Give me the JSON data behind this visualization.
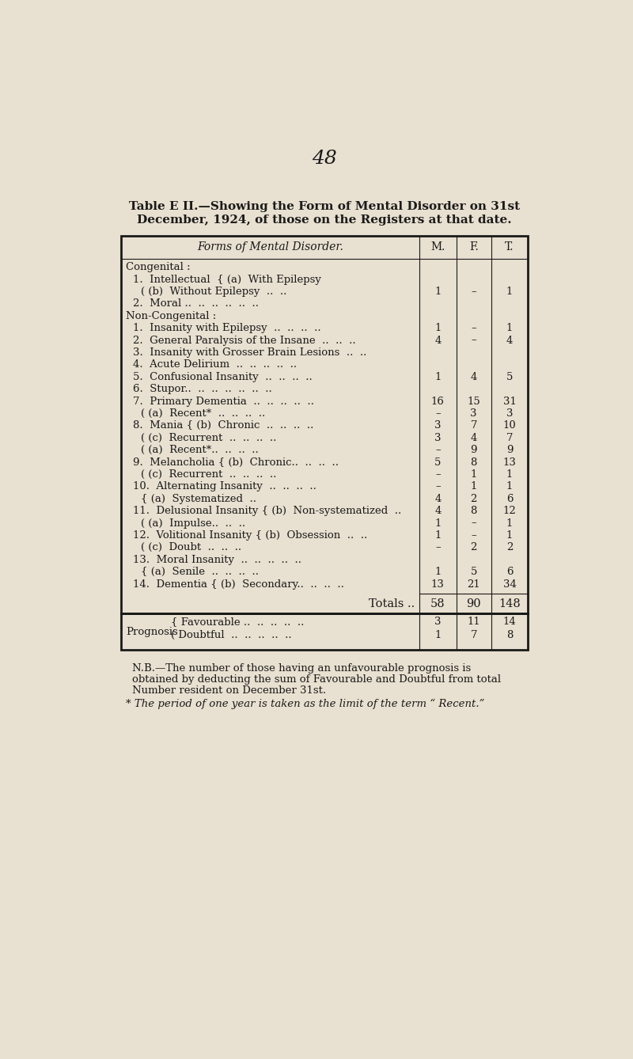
{
  "page_number": "48",
  "title_line1": "Table E II.—Showing the Form of Mental Disorder on 31st",
  "title_line2": "December, 1924, of those on the Registers at that date.",
  "bg_color": "#e8e0d0",
  "text_color": "#1a1a1a",
  "table_header": [
    "Forms of Mental Disorder.",
    "M.",
    "F.",
    "T."
  ],
  "rows": [
    {
      "label": "Congenital :",
      "indent": 0,
      "type": "section",
      "M": "",
      "F": "",
      "T": ""
    },
    {
      "label": "1.  Intellectual  { (a)  With Epilepsy",
      "indent": 1,
      "type": "data_nonum",
      "M": "",
      "F": "",
      "T": ""
    },
    {
      "label": "( (b)  Without Epilepsy  ..  ..",
      "indent": 2,
      "type": "data",
      "M": "1",
      "F": "–",
      "T": "1"
    },
    {
      "label": "2.  Moral ..  ..  ..  ..  ..  ..",
      "indent": 1,
      "type": "data_nonum",
      "M": "",
      "F": "",
      "T": ""
    },
    {
      "label": "Non-Congenital :",
      "indent": 0,
      "type": "section",
      "M": "",
      "F": "",
      "T": ""
    },
    {
      "label": "1.  Insanity with Epilepsy  ..  ..  ..  ..",
      "indent": 1,
      "type": "data",
      "M": "1",
      "F": "–",
      "T": "1"
    },
    {
      "label": "2.  General Paralysis of the Insane  ..  ..  ..",
      "indent": 1,
      "type": "data",
      "M": "4",
      "F": "–",
      "T": "4"
    },
    {
      "label": "3.  Insanity with Grosser Brain Lesions  ..  ..",
      "indent": 1,
      "type": "data_nonum",
      "M": "",
      "F": "",
      "T": ""
    },
    {
      "label": "4.  Acute Delirium  ..  ..  ..  ..  ..",
      "indent": 1,
      "type": "data_nonum",
      "M": "",
      "F": "",
      "T": ""
    },
    {
      "label": "5.  Confusional Insanity  ..  ..  ..  ..",
      "indent": 1,
      "type": "data",
      "M": "1",
      "F": "4",
      "T": "5"
    },
    {
      "label": "6.  Stupor..  ..  ..  ..  ..  ..  ..",
      "indent": 1,
      "type": "data_nonum",
      "M": "",
      "F": "",
      "T": ""
    },
    {
      "label": "7.  Primary Dementia  ..  ..  ..  ..  ..",
      "indent": 1,
      "type": "data",
      "M": "16",
      "F": "15",
      "T": "31"
    },
    {
      "label": "( (a)  Recent*  ..  ..  ..  ..",
      "indent": 2,
      "type": "data",
      "M": "–",
      "F": "3",
      "T": "3"
    },
    {
      "label": "8.  Mania { (b)  Chronic  ..  ..  ..  ..",
      "indent": 1,
      "type": "data",
      "M": "3",
      "F": "7",
      "T": "10"
    },
    {
      "label": "( (c)  Recurrent  ..  ..  ..  ..",
      "indent": 2,
      "type": "data",
      "M": "3",
      "F": "4",
      "T": "7"
    },
    {
      "label": "( (a)  Recent*..  ..  ..  ..",
      "indent": 2,
      "type": "data",
      "M": "–",
      "F": "9",
      "T": "9"
    },
    {
      "label": "9.  Melancholia { (b)  Chronic..  ..  ..  ..",
      "indent": 1,
      "type": "data",
      "M": "5",
      "F": "8",
      "T": "13"
    },
    {
      "label": "( (c)  Recurrent  ..  ..  ..  ..",
      "indent": 2,
      "type": "data",
      "M": "–",
      "F": "1",
      "T": "1"
    },
    {
      "label": "10.  Alternating Insanity  ..  ..  ..  ..",
      "indent": 1,
      "type": "data",
      "M": "–",
      "F": "1",
      "T": "1"
    },
    {
      "label": "{ (a)  Systematized  ..",
      "indent": 2,
      "type": "data",
      "M": "4",
      "F": "2",
      "T": "6"
    },
    {
      "label": "11.  Delusional Insanity { (b)  Non-systematized  ..",
      "indent": 1,
      "type": "data",
      "M": "4",
      "F": "8",
      "T": "12"
    },
    {
      "label": "( (a)  Impulse..  ..  ..",
      "indent": 2,
      "type": "data",
      "M": "1",
      "F": "–",
      "T": "1"
    },
    {
      "label": "12.  Volitional Insanity { (b)  Obsession  ..  ..",
      "indent": 1,
      "type": "data",
      "M": "1",
      "F": "–",
      "T": "1"
    },
    {
      "label": "( (c)  Doubt  ..  ..  ..",
      "indent": 2,
      "type": "data",
      "M": "–",
      "F": "2",
      "T": "2"
    },
    {
      "label": "13.  Moral Insanity  ..  ..  ..  ..  ..",
      "indent": 1,
      "type": "data_nonum",
      "M": "",
      "F": "",
      "T": ""
    },
    {
      "label": "{ (a)  Senile  ..  ..  ..  ..",
      "indent": 2,
      "type": "data",
      "M": "1",
      "F": "5",
      "T": "6"
    },
    {
      "label": "14.  Dementia { (b)  Secondary..  ..  ..  ..",
      "indent": 1,
      "type": "data",
      "M": "13",
      "F": "21",
      "T": "34"
    }
  ],
  "totals": {
    "label": "Totals ..",
    "M": "58",
    "F": "90",
    "T": "148"
  },
  "prognosis": [
    {
      "label": "Favourable ..  ..  ..  ..  ..",
      "M": "3",
      "F": "11",
      "T": "14"
    },
    {
      "label": "Doubtful  ..  ..  ..  ..  ..",
      "M": "1",
      "F": "7",
      "T": "8"
    }
  ],
  "prognosis_label": "Prognosis",
  "footnote1_lines": [
    "N.B.—The number of those having an unfavourable prognosis is",
    "obtained by deducting the sum of Favourable and Doubtful from total",
    "Number resident on December 31st."
  ],
  "footnote2": "* The period of one year is taken as the limit of the term “ Recent.”"
}
